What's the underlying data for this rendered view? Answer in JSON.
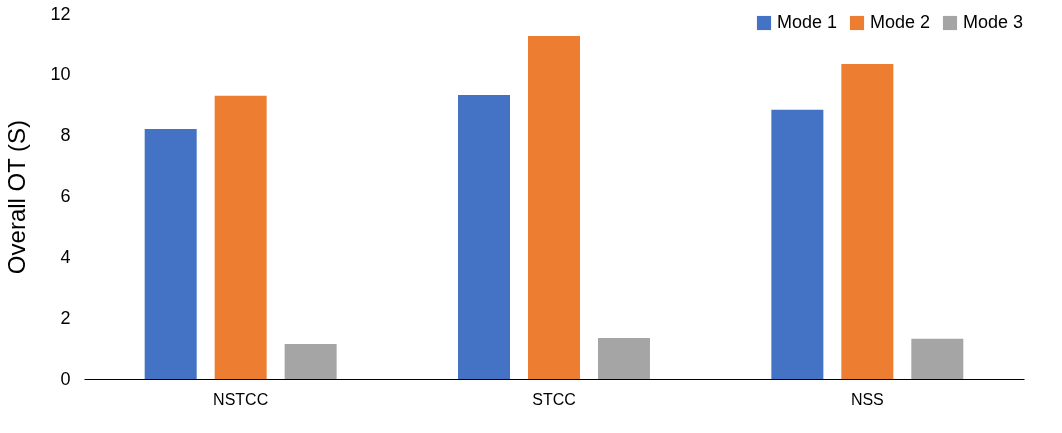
{
  "chart_data": {
    "type": "bar",
    "ylabel": "Overall OT (S)",
    "categories": [
      "NSTCC",
      "STCC",
      "NSS"
    ],
    "series": [
      {
        "name": "Mode 1",
        "color": "#4472c4",
        "values": [
          8.22,
          9.34,
          8.85
        ]
      },
      {
        "name": "Mode 2",
        "color": "#ed7d31",
        "values": [
          9.31,
          11.28,
          10.36
        ]
      },
      {
        "name": "Mode 3",
        "color": "#a5a5a5",
        "values": [
          1.15,
          1.35,
          1.32
        ]
      }
    ],
    "ylim": [
      0,
      12
    ],
    "yticks": [
      0,
      2,
      4,
      6,
      8,
      10,
      12
    ],
    "grid": false,
    "legend": "top right"
  }
}
